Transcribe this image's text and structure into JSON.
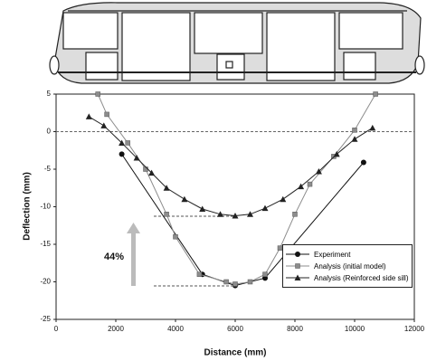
{
  "chart_data": {
    "type": "line",
    "xlabel": "Distance (mm)",
    "ylabel": "Deflection (mm)",
    "annotation": "44%",
    "xlim": [
      0,
      12000
    ],
    "xticks": [
      0,
      2000,
      4000,
      6000,
      8000,
      10000,
      12000
    ],
    "ylim": [
      -25,
      5
    ],
    "yticks": [
      5,
      0,
      -5,
      -10,
      -15,
      -20,
      -25
    ],
    "legend": "lower right",
    "series": [
      {
        "name": "Experiment",
        "color": "#111111",
        "marker": "circle",
        "x": [
          2200,
          4900,
          6000,
          7000,
          10300
        ],
        "values": [
          -3,
          -19,
          -20.5,
          -19.5,
          -4.1
        ]
      },
      {
        "name": "Analysis (initial model)",
        "color": "#8c8c8c",
        "marker": "square",
        "x": [
          1400,
          1700,
          2400,
          3000,
          3700,
          4000,
          4800,
          5700,
          6000,
          6500,
          7000,
          7500,
          8000,
          8500,
          9300,
          10000,
          10700
        ],
        "values": [
          5,
          2.3,
          -1.5,
          -5,
          -11,
          -14,
          -19,
          -20,
          -20.3,
          -20,
          -19,
          -15.5,
          -11,
          -7,
          -3.3,
          0.2,
          5
        ]
      },
      {
        "name": "Analysis (Reinforced side sill)",
        "color": "#222222",
        "marker": "triangle",
        "x": [
          1100,
          1600,
          2200,
          2700,
          3200,
          3700,
          4300,
          4900,
          5500,
          6000,
          6500,
          7000,
          7600,
          8200,
          8800,
          9400,
          10000,
          10600
        ],
        "values": [
          2,
          0.8,
          -1.5,
          -3.5,
          -5.5,
          -7.5,
          -9,
          -10.3,
          -11,
          -11.2,
          -11,
          -10.2,
          -9,
          -7.3,
          -5.3,
          -3,
          -1,
          0.5
        ]
      }
    ]
  }
}
